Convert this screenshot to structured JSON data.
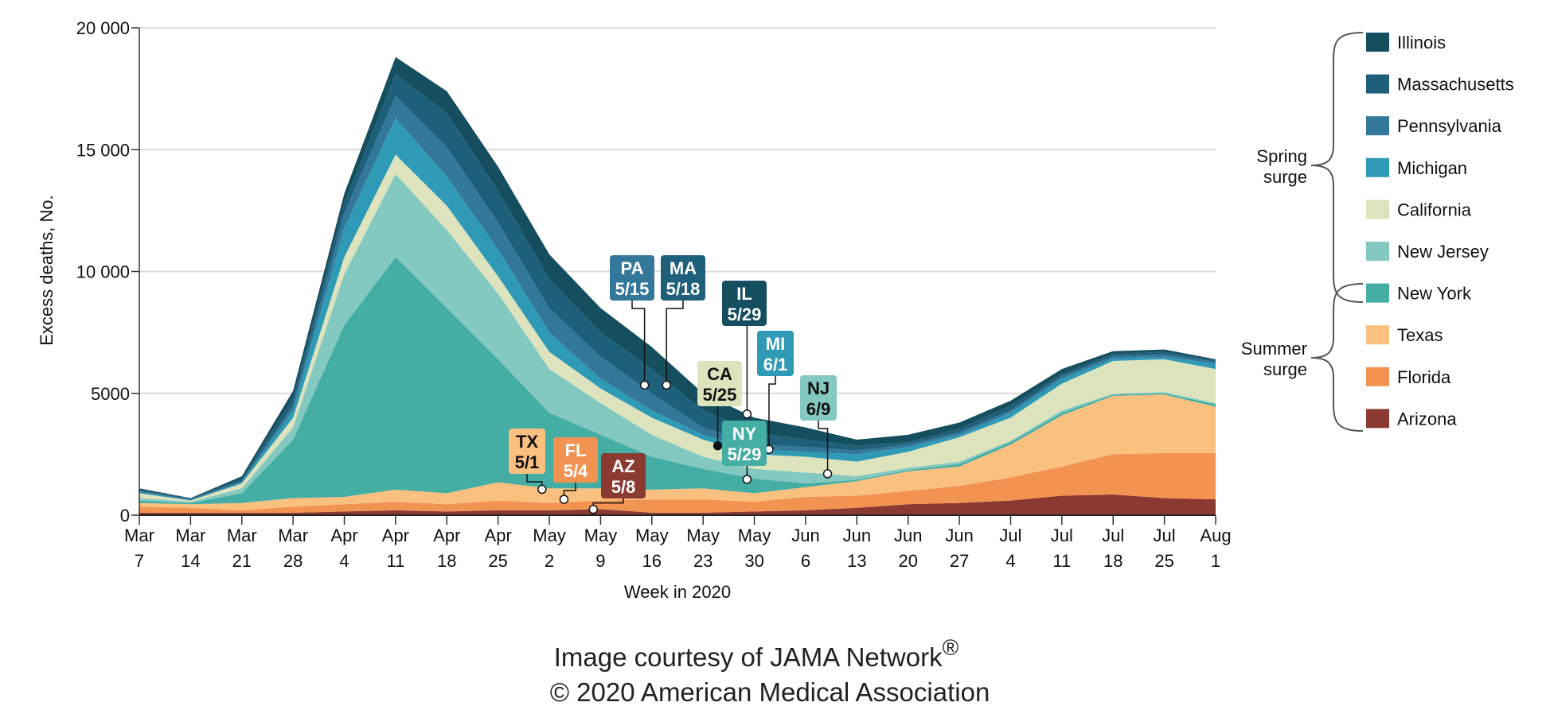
{
  "chart_data": {
    "type": "area",
    "stacked": true,
    "xlabel": "Week in 2020",
    "ylabel": "Excess deaths, No.",
    "ylim": [
      0,
      20000
    ],
    "yticks": [
      0,
      5000,
      10000,
      15000,
      20000
    ],
    "ytick_labels": [
      "0",
      "5000",
      "10 000",
      "15 000",
      "20 000"
    ],
    "grid": true,
    "legend_placement": "right",
    "categories": [
      [
        "Mar",
        "7"
      ],
      [
        "Mar",
        "14"
      ],
      [
        "Mar",
        "21"
      ],
      [
        "Mar",
        "28"
      ],
      [
        "Apr",
        "4"
      ],
      [
        "Apr",
        "11"
      ],
      [
        "Apr",
        "18"
      ],
      [
        "Apr",
        "25"
      ],
      [
        "May",
        "2"
      ],
      [
        "May",
        "9"
      ],
      [
        "May",
        "16"
      ],
      [
        "May",
        "23"
      ],
      [
        "May",
        "30"
      ],
      [
        "Jun",
        "6"
      ],
      [
        "Jun",
        "13"
      ],
      [
        "Jun",
        "20"
      ],
      [
        "Jun",
        "27"
      ],
      [
        "Jul",
        "4"
      ],
      [
        "Jul",
        "11"
      ],
      [
        "Jul",
        "18"
      ],
      [
        "Jul",
        "25"
      ],
      [
        "Aug",
        "1"
      ]
    ],
    "series": [
      {
        "name": "Arizona",
        "abbr": "AZ",
        "color": "#8b3a32",
        "values": [
          100,
          100,
          100,
          100,
          150,
          200,
          150,
          200,
          200,
          250,
          100,
          100,
          150,
          200,
          300,
          450,
          500,
          600,
          800,
          850,
          700,
          650
        ]
      },
      {
        "name": "Florida",
        "abbr": "FL",
        "color": "#f29351",
        "values": [
          250,
          200,
          100,
          250,
          300,
          350,
          300,
          400,
          300,
          350,
          550,
          550,
          400,
          550,
          500,
          550,
          700,
          950,
          1200,
          1650,
          1850,
          1900
        ]
      },
      {
        "name": "Texas",
        "abbr": "TX",
        "color": "#f9c07f",
        "values": [
          150,
          150,
          300,
          350,
          300,
          500,
          450,
          750,
          600,
          500,
          400,
          450,
          350,
          400,
          600,
          800,
          800,
          1350,
          2100,
          2400,
          2400,
          1900
        ]
      },
      {
        "name": "New York",
        "abbr": "NY",
        "color": "#44ada4",
        "values": [
          100,
          50,
          400,
          2400,
          7050,
          9550,
          7600,
          5050,
          3100,
          2200,
          1350,
          800,
          600,
          150,
          50,
          50,
          100,
          100,
          100,
          50,
          50,
          100
        ]
      },
      {
        "name": "New Jersey",
        "abbr": "NJ",
        "color": "#83c9c0",
        "values": [
          100,
          50,
          200,
          500,
          2100,
          3400,
          3200,
          2700,
          1800,
          1300,
          900,
          500,
          400,
          450,
          150,
          100,
          100,
          50,
          100,
          30,
          50,
          50
        ]
      },
      {
        "name": "California",
        "abbr": "CA",
        "color": "#dce3bd",
        "values": [
          200,
          50,
          200,
          400,
          700,
          800,
          1000,
          700,
          700,
          600,
          700,
          700,
          600,
          650,
          600,
          650,
          1000,
          950,
          1100,
          1350,
          1350,
          1400
        ]
      },
      {
        "name": "Michigan",
        "abbr": "MI",
        "color": "#2f9ab5",
        "values": [
          50,
          20,
          50,
          300,
          1200,
          1500,
          1200,
          1100,
          800,
          400,
          300,
          200,
          200,
          200,
          300,
          200,
          100,
          200,
          200,
          100,
          100,
          200
        ]
      },
      {
        "name": "Pennsylvania",
        "abbr": "PA",
        "color": "#33789a",
        "values": [
          50,
          30,
          50,
          200,
          600,
          900,
          1200,
          1100,
          1000,
          900,
          700,
          300,
          200,
          200,
          150,
          100,
          100,
          100,
          100,
          100,
          100,
          100
        ]
      },
      {
        "name": "Massachusetts",
        "abbr": "MA",
        "color": "#1e5f7a",
        "values": [
          50,
          30,
          100,
          300,
          400,
          900,
          1400,
          1300,
          1200,
          1000,
          1000,
          700,
          500,
          300,
          200,
          100,
          150,
          200,
          100,
          100,
          100,
          50
        ]
      },
      {
        "name": "Illinois",
        "abbr": "IL",
        "color": "#154e5e",
        "values": [
          50,
          20,
          100,
          300,
          400,
          700,
          900,
          1000,
          1000,
          1000,
          900,
          700,
          600,
          500,
          250,
          300,
          250,
          200,
          200,
          100,
          100,
          50
        ]
      }
    ],
    "groups": [
      {
        "label_lines": [
          "Spring",
          "surge"
        ],
        "members": [
          "Illinois",
          "Massachusetts",
          "Pennsylvania",
          "Michigan",
          "New Jersey",
          "New York",
          "California"
        ]
      },
      {
        "label_lines": [
          "Summer",
          "surge"
        ],
        "members": [
          "California",
          "Texas",
          "Florida",
          "Arizona"
        ]
      }
    ],
    "annotations": [
      {
        "abbr": "PA",
        "date": "5/15",
        "y": 5340,
        "color": "#33789a",
        "text_color": "#ffffff",
        "marker": "open"
      },
      {
        "abbr": "MA",
        "date": "5/18",
        "y": 5340,
        "color": "#1e5f7a",
        "text_color": "#ffffff",
        "marker": "open"
      },
      {
        "abbr": "IL",
        "date": "5/29",
        "y": 4150,
        "color": "#154e5e",
        "text_color": "#ffffff",
        "marker": "open"
      },
      {
        "abbr": "MI",
        "date": "6/1",
        "y": 2700,
        "color": "#2f9ab5",
        "text_color": "#ffffff",
        "marker": "open"
      },
      {
        "abbr": "CA",
        "date": "5/25",
        "y": 2850,
        "color": "#dce3bd",
        "text_color": "#111111",
        "marker": "filled"
      },
      {
        "abbr": "NY",
        "date": "5/29",
        "y": 1470,
        "color": "#44ada4",
        "text_color": "#ffffff",
        "marker": "open"
      },
      {
        "abbr": "NJ",
        "date": "6/9",
        "y": 1700,
        "color": "#83c9c0",
        "text_color": "#111111",
        "marker": "open"
      },
      {
        "abbr": "TX",
        "date": "5/1",
        "y": 1060,
        "color": "#f9c07f",
        "text_color": "#111111",
        "marker": "open"
      },
      {
        "abbr": "FL",
        "date": "5/4",
        "y": 650,
        "color": "#f29351",
        "text_color": "#ffffff",
        "marker": "open"
      },
      {
        "abbr": "AZ",
        "date": "5/8",
        "y": 240,
        "color": "#8b3a32",
        "text_color": "#ffffff",
        "marker": "open"
      }
    ]
  },
  "footer": {
    "credit": "Image courtesy of JAMA Network",
    "credit_mark": "®",
    "copyright": "© 2020 American Medical Association"
  }
}
